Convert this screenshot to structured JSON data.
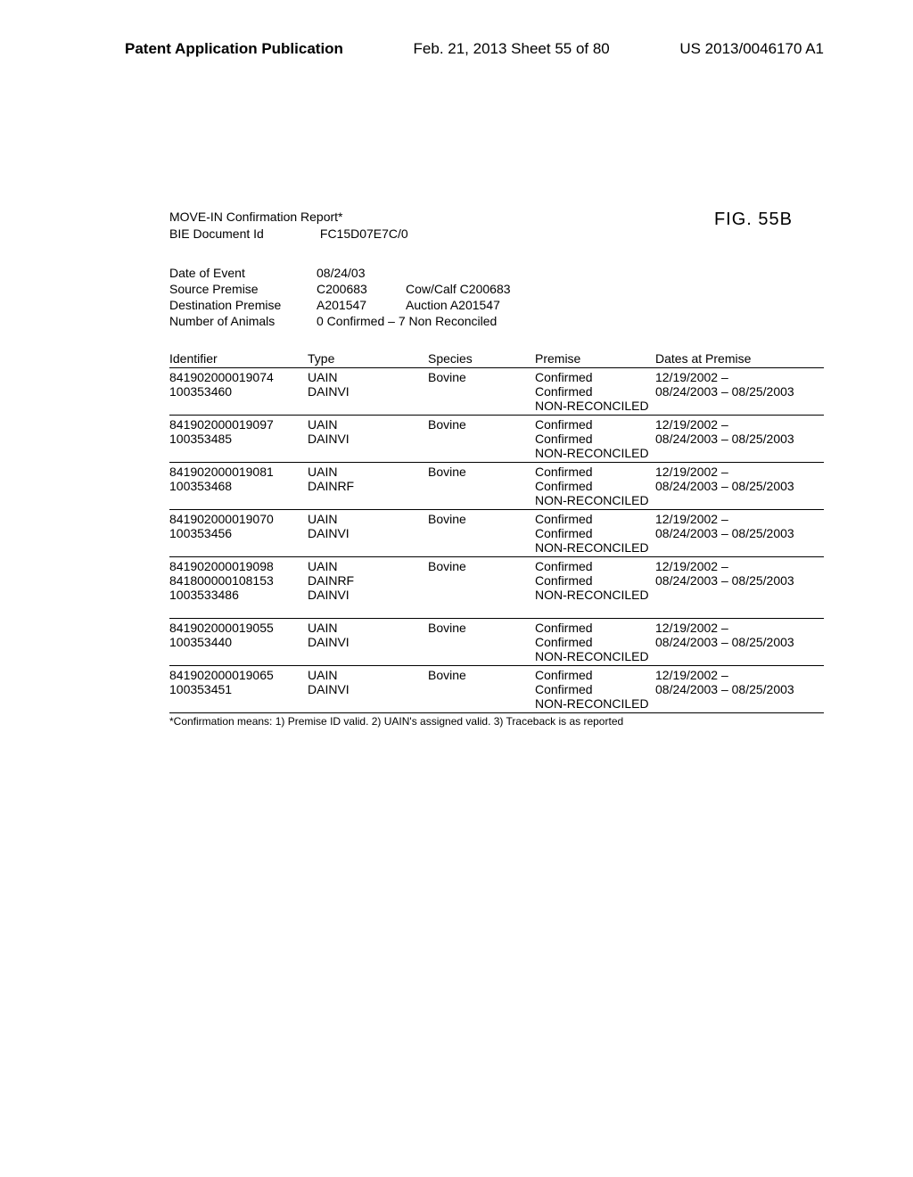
{
  "header": {
    "left": "Patent Application Publication",
    "center": "Feb. 21, 2013  Sheet 55 of 80",
    "right": "US 2013/0046170 A1"
  },
  "figureLabel": "FIG. 55B",
  "reportTitle": "MOVE-IN Confirmation Report*",
  "docIdLabel": "BIE Document Id",
  "docIdValue": "FC15D07E7C/0",
  "meta": [
    {
      "label": "Date of Event",
      "v1": "08/24/03",
      "v2": ""
    },
    {
      "label": "Source Premise",
      "v1": "C200683",
      "v2": "Cow/Calf C200683"
    },
    {
      "label": "Destination Premise",
      "v1": "A201547",
      "v2": "Auction A201547"
    },
    {
      "label": "Number of Animals",
      "v1": "",
      "v2": "0 Confirmed – 7 Non Reconciled"
    }
  ],
  "columns": {
    "id": "Identifier",
    "type": "Type",
    "species": "Species",
    "premise": "Premise",
    "dates": "Dates at Premise"
  },
  "groups": [
    {
      "rows": [
        {
          "id": "841902000019074",
          "type": "UAIN",
          "species": "Bovine",
          "premise": "Confirmed",
          "dates": "12/19/2002 –"
        },
        {
          "id": "100353460",
          "type": "DAINVI",
          "species": "",
          "premise": "Confirmed",
          "dates": "08/24/2003 – 08/25/2003"
        },
        {
          "id": "",
          "type": "",
          "species": "",
          "premise": "NON-RECONCILED",
          "dates": ""
        }
      ]
    },
    {
      "rows": [
        {
          "id": "841902000019097",
          "type": "UAIN",
          "species": "Bovine",
          "premise": "Confirmed",
          "dates": "12/19/2002 –"
        },
        {
          "id": "100353485",
          "type": "DAINVI",
          "species": "",
          "premise": "Confirmed",
          "dates": "08/24/2003 – 08/25/2003"
        },
        {
          "id": "",
          "type": "",
          "species": "",
          "premise": "NON-RECONCILED",
          "dates": ""
        }
      ]
    },
    {
      "rows": [
        {
          "id": "841902000019081",
          "type": "UAIN",
          "species": "Bovine",
          "premise": "Confirmed",
          "dates": "12/19/2002 –"
        },
        {
          "id": "100353468",
          "type": "DAINRF",
          "species": "",
          "premise": "Confirmed",
          "dates": "08/24/2003 – 08/25/2003"
        },
        {
          "id": "",
          "type": "",
          "species": "",
          "premise": "NON-RECONCILED",
          "dates": ""
        }
      ]
    },
    {
      "rows": [
        {
          "id": "841902000019070",
          "type": "UAIN",
          "species": "Bovine",
          "premise": "Confirmed",
          "dates": "12/19/2002 –"
        },
        {
          "id": "100353456",
          "type": "DAINVI",
          "species": "",
          "premise": "Confirmed",
          "dates": "08/24/2003 – 08/25/2003"
        },
        {
          "id": "",
          "type": "",
          "species": "",
          "premise": "NON-RECONCILED",
          "dates": ""
        }
      ]
    },
    {
      "rows": [
        {
          "id": "841902000019098",
          "type": "UAIN",
          "species": "Bovine",
          "premise": "Confirmed",
          "dates": "12/19/2002 –"
        },
        {
          "id": "841800000108153",
          "type": "DAINRF",
          "species": "",
          "premise": "Confirmed",
          "dates": "08/24/2003 – 08/25/2003"
        },
        {
          "id": "1003533486",
          "type": "DAINVI",
          "species": "",
          "premise": "NON-RECONCILED",
          "dates": ""
        },
        {
          "id": "",
          "type": "",
          "species": "",
          "premise": "",
          "dates": ""
        }
      ]
    },
    {
      "rows": [
        {
          "id": "841902000019055",
          "type": "UAIN",
          "species": "Bovine",
          "premise": "Confirmed",
          "dates": "12/19/2002 –"
        },
        {
          "id": "100353440",
          "type": "DAINVI",
          "species": "",
          "premise": "Confirmed",
          "dates": "08/24/2003 – 08/25/2003"
        },
        {
          "id": "",
          "type": "",
          "species": "",
          "premise": "NON-RECONCILED",
          "dates": ""
        }
      ]
    },
    {
      "rows": [
        {
          "id": "841902000019065",
          "type": "UAIN",
          "species": "Bovine",
          "premise": "Confirmed",
          "dates": "12/19/2002 –"
        },
        {
          "id": "100353451",
          "type": "DAINVI",
          "species": "",
          "premise": "Confirmed",
          "dates": "08/24/2003 – 08/25/2003"
        },
        {
          "id": "",
          "type": "",
          "species": "",
          "premise": "NON-RECONCILED",
          "dates": ""
        }
      ]
    }
  ],
  "footnote": "*Confirmation means: 1) Premise ID valid. 2) UAIN's assigned valid. 3) Traceback is as reported"
}
